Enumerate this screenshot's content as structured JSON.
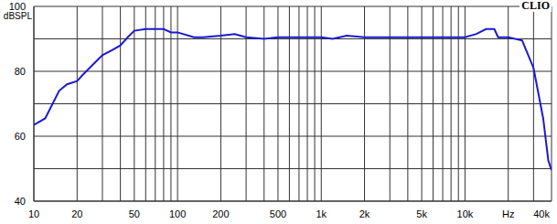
{
  "chart_data": {
    "type": "line",
    "title": "CLIO",
    "y_label": "dBSPL",
    "x": [
      10,
      12,
      15,
      17,
      20,
      22,
      25,
      30,
      35,
      40,
      45,
      50,
      60,
      70,
      80,
      90,
      100,
      130,
      150,
      200,
      250,
      300,
      400,
      500,
      700,
      800,
      1000,
      1200,
      1500,
      2000,
      3000,
      5000,
      6000,
      8000,
      10000,
      12000,
      14000,
      16000,
      17000,
      20000,
      25000,
      30000,
      35000,
      38000,
      40000
    ],
    "values": [
      63.5,
      65.5,
      74,
      76,
      77,
      79,
      81.5,
      85,
      86.5,
      88,
      90.5,
      92.5,
      93,
      93,
      93,
      92,
      92,
      90.5,
      90.5,
      91,
      91.5,
      90.5,
      90,
      90.5,
      90.5,
      90.5,
      90.5,
      90,
      91,
      90.5,
      90.5,
      90.5,
      90.5,
      90.5,
      90.5,
      91.5,
      93,
      93,
      90.5,
      90.5,
      89.5,
      81,
      65.5,
      52.5,
      49.5
    ],
    "color": "#1a1ad0",
    "xlim": [
      10,
      40000
    ],
    "ylim": [
      40,
      100
    ],
    "xticks": [
      10,
      20,
      50,
      100,
      200,
      500,
      {
        "value": 1000,
        "label": "1k"
      },
      {
        "value": 2000,
        "label": "2k"
      },
      {
        "value": 5000,
        "label": "5k"
      },
      {
        "value": 10000,
        "label": "10k"
      },
      {
        "value": 20000,
        "label": "Hz"
      },
      {
        "value": 40000,
        "label": "40k"
      }
    ],
    "yticks": [
      40,
      60,
      80,
      100
    ],
    "log": "x",
    "grid": true
  }
}
